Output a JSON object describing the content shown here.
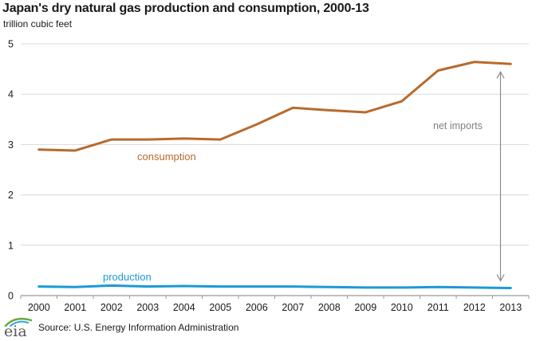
{
  "page": {
    "title": "Japan's dry natural gas production and consumption, 2000-13",
    "subtitle": "trillion cubic feet"
  },
  "chart_data": {
    "type": "line",
    "title": "Japan's dry natural gas production and consumption, 2000-13",
    "ylabel": "trillion cubic feet",
    "xlabel": "",
    "ylim": [
      0,
      5
    ],
    "yticks": [
      0,
      1,
      2,
      3,
      4,
      5
    ],
    "grid": "horizontal",
    "legend_position": "inline-labels",
    "categories": [
      "2000",
      "2001",
      "2002",
      "2003",
      "2004",
      "2005",
      "2006",
      "2007",
      "2008",
      "2009",
      "2010",
      "2011",
      "2012",
      "2013"
    ],
    "series": [
      {
        "name": "consumption",
        "color": "#b86a2b",
        "values": [
          2.9,
          2.88,
          3.1,
          3.1,
          3.12,
          3.1,
          3.4,
          3.73,
          3.68,
          3.64,
          3.86,
          4.47,
          4.64,
          4.6
        ]
      },
      {
        "name": "production",
        "color": "#1b9ad6",
        "values": [
          0.18,
          0.17,
          0.2,
          0.18,
          0.19,
          0.18,
          0.18,
          0.18,
          0.17,
          0.16,
          0.16,
          0.17,
          0.16,
          0.15
        ]
      }
    ],
    "annotation": {
      "text": "net imports",
      "arrow": "vertical-double-headed",
      "arrow_between": [
        "consumption",
        "production"
      ],
      "arrow_year": "2013"
    }
  },
  "colors": {
    "grid": "#d9d9d9",
    "axis": "#999999",
    "text": "#1a1a1a",
    "annotation": "#8c8c8c",
    "logo_green": "#68a63d",
    "logo_blue": "#2aa8df",
    "logo_text": "#595959"
  },
  "footer": {
    "logo_text": "eia",
    "source": "Source: U.S. Energy Information Administration"
  }
}
